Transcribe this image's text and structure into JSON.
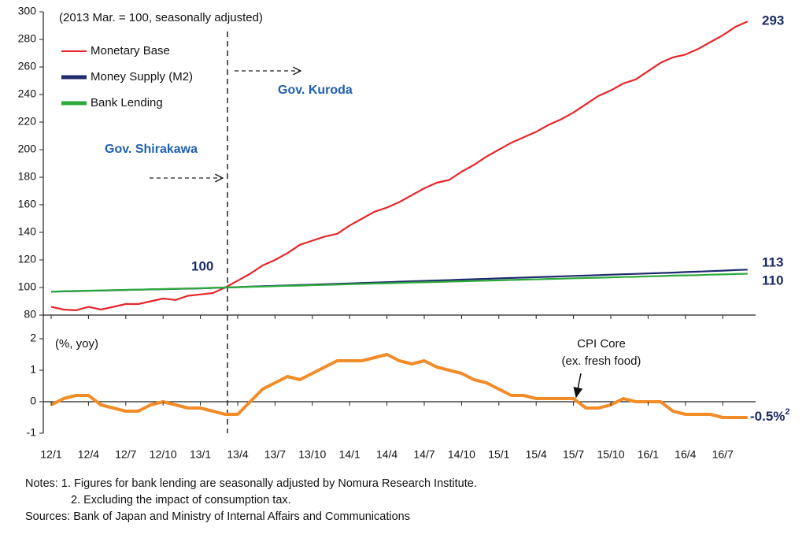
{
  "chart_data": [
    {
      "type": "line",
      "subtitle": "(2013 Mar. = 100, seasonally adjusted)",
      "ylim": [
        80,
        300
      ],
      "yticks": [
        80,
        100,
        120,
        140,
        160,
        180,
        200,
        220,
        240,
        260,
        280,
        300
      ],
      "annotations": [
        "Gov. Shirakawa",
        "Gov. Kuroda",
        "100"
      ],
      "series": [
        {
          "name": "Monetary Base",
          "color": "#e8262b",
          "end_label": "293",
          "values": [
            86,
            84,
            83.5,
            86,
            84,
            86,
            88,
            88,
            90,
            92,
            91,
            94,
            95,
            96,
            100,
            105,
            110,
            116,
            120,
            125,
            131,
            134,
            137,
            139,
            145,
            150,
            155,
            158,
            162,
            167,
            172,
            176,
            178,
            184,
            189,
            195,
            200,
            205,
            209,
            213,
            218,
            222,
            227,
            233,
            239,
            243,
            248,
            251,
            257,
            263,
            267,
            269,
            273,
            278,
            283,
            289,
            293
          ]
        },
        {
          "name": "Money Supply (M2)",
          "color": "#1f2a6e",
          "end_label": "113",
          "values": [
            97,
            97.2,
            97.4,
            97.6,
            97.8,
            98,
            98.2,
            98.4,
            98.6,
            98.8,
            99,
            99.2,
            99.4,
            99.7,
            100,
            100.3,
            100.6,
            100.9,
            101.2,
            101.5,
            101.8,
            102.1,
            102.4,
            102.7,
            103,
            103.3,
            103.6,
            103.9,
            104.2,
            104.5,
            104.8,
            105.1,
            105.4,
            105.7,
            106,
            106.3,
            106.6,
            106.9,
            107.2,
            107.5,
            107.8,
            108.1,
            108.4,
            108.7,
            109,
            109.3,
            109.6,
            109.9,
            110.2,
            110.5,
            110.8,
            111.2,
            111.5,
            111.9,
            112.2,
            112.6,
            113
          ]
        },
        {
          "name": "Bank Lending",
          "color": "#2eaa3c",
          "end_label": "110",
          "values": [
            97,
            97.3,
            97.5,
            97.7,
            97.9,
            98.1,
            98.3,
            98.5,
            98.7,
            98.9,
            99.1,
            99.3,
            99.5,
            99.8,
            100,
            100.2,
            100.5,
            100.7,
            101,
            101.2,
            101.4,
            101.7,
            101.9,
            102.1,
            102.4,
            102.6,
            102.9,
            103.1,
            103.3,
            103.6,
            103.8,
            104,
            104.3,
            104.5,
            104.8,
            105,
            105.2,
            105.5,
            105.7,
            105.9,
            106.2,
            106.4,
            106.7,
            106.9,
            107.1,
            107.4,
            107.6,
            107.8,
            108.1,
            108.3,
            108.6,
            108.8,
            109,
            109.3,
            109.5,
            109.8,
            110
          ]
        }
      ]
    },
    {
      "type": "line",
      "subtitle": "(%, yoy)",
      "ylim": [
        -1,
        2
      ],
      "yticks": [
        -1,
        0,
        1,
        2
      ],
      "annotations": [
        "CPI Core",
        "(ex. fresh food)"
      ],
      "categories": [
        "12/1",
        null,
        null,
        "12/4",
        null,
        null,
        "12/7",
        null,
        null,
        "12/10",
        null,
        null,
        "13/1",
        null,
        null,
        "13/4",
        null,
        null,
        "13/7",
        null,
        null,
        "13/10",
        null,
        null,
        "14/1",
        null,
        null,
        "14/4",
        null,
        null,
        "14/7",
        null,
        null,
        "14/10",
        null,
        null,
        "15/1",
        null,
        null,
        "15/4",
        null,
        null,
        "15/7",
        null,
        null,
        "15/10",
        null,
        null,
        "16/1",
        null,
        null,
        "16/4",
        null,
        null,
        "16/7",
        null,
        null
      ],
      "series": [
        {
          "name": "CPI Core",
          "color": "#f28c28",
          "end_label": "-0.5%",
          "end_label_note": "2",
          "values": [
            -0.1,
            0.1,
            0.2,
            0.2,
            -0.1,
            -0.2,
            -0.3,
            -0.3,
            -0.1,
            0,
            -0.1,
            -0.2,
            -0.2,
            -0.3,
            -0.4,
            -0.4,
            0,
            0.4,
            0.6,
            0.8,
            0.7,
            0.9,
            1.1,
            1.3,
            1.3,
            1.3,
            1.4,
            1.5,
            1.3,
            1.2,
            1.3,
            1.1,
            1.0,
            0.9,
            0.7,
            0.6,
            0.4,
            0.2,
            0.2,
            0.1,
            0.1,
            0.1,
            0.1,
            -0.2,
            -0.2,
            -0.1,
            0.1,
            0,
            0,
            0,
            -0.3,
            -0.4,
            -0.4,
            -0.4,
            -0.5,
            -0.5,
            -0.5
          ]
        }
      ]
    }
  ],
  "notes": [
    "Notes: 1. Figures for bank lending are seasonally adjusted by Nomura Research Institute.",
    "2. Excluding the impact of consumption tax.",
    "Sources: Bank of Japan and Ministry of Internal Affairs and Communications"
  ]
}
